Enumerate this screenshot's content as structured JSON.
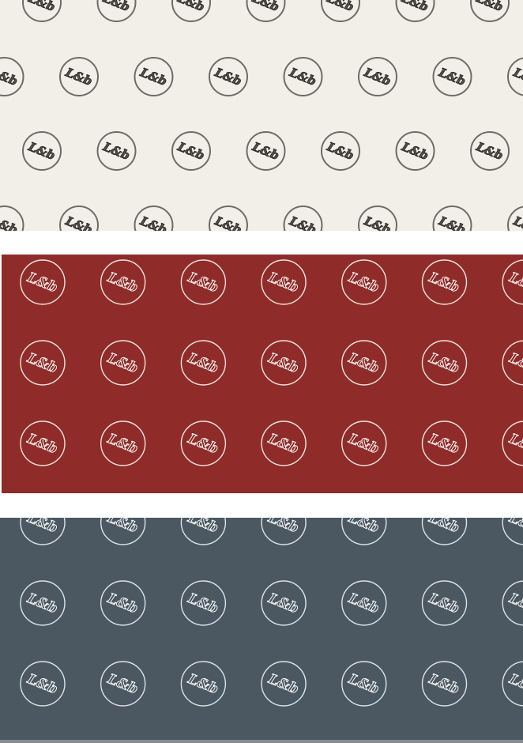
{
  "monogram": "L&b",
  "swatches": [
    {
      "id": "cream",
      "background": "#f2efe8",
      "ring_color": "#6f6c66",
      "text_color": "#55524c",
      "text_stroke": "#2e2c29"
    },
    {
      "id": "red",
      "background": "#8f2c29",
      "ring_color": "#f1e3df",
      "text_color": "#8f2c29",
      "text_stroke": "#ffffff"
    },
    {
      "id": "slate",
      "background": "#4b5862",
      "ring_color": "#dde3e7",
      "text_color": "#4b5862",
      "text_stroke": "#ffffff"
    }
  ],
  "page_background": "#ffffff",
  "bottom_edge_color": "#888c8e"
}
